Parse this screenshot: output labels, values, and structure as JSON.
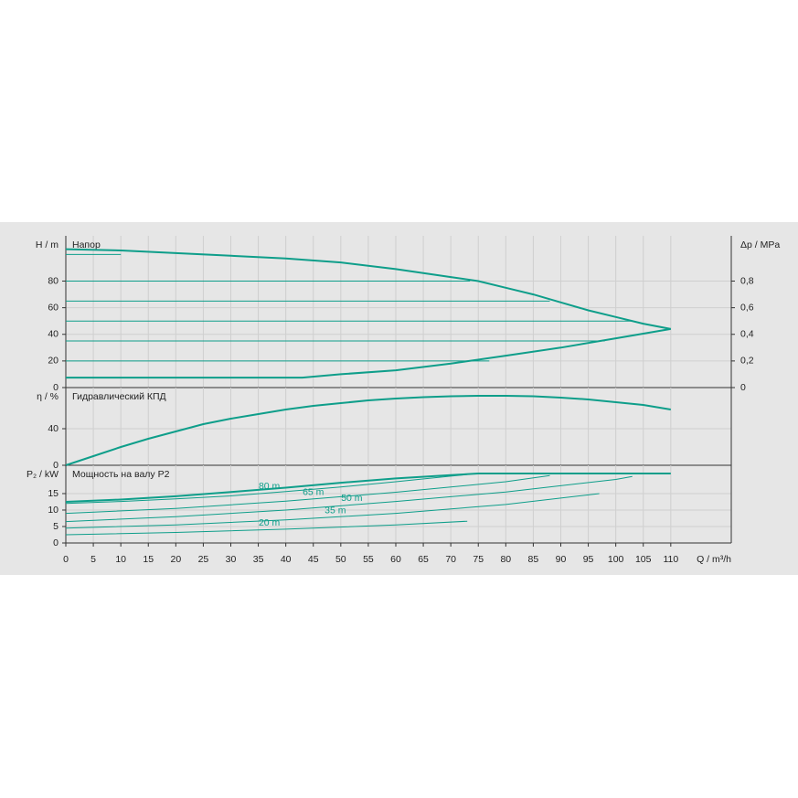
{
  "chart_data": [
    {
      "type": "line",
      "ylabel": "H / m",
      "title": "Напор",
      "y2label": "Δp / MPa",
      "xlim": [
        0,
        121
      ],
      "ylim": [
        0,
        114
      ],
      "yticks": [
        0,
        20,
        40,
        60,
        80
      ],
      "y2lim": [
        0,
        1.14
      ],
      "y2ticks": [
        0,
        {
          "value": 0.2,
          "label": "0,2"
        },
        {
          "value": 0.4,
          "label": "0,4"
        },
        {
          "value": 0.6,
          "label": "0,6"
        },
        {
          "value": 0.8,
          "label": "0,8"
        }
      ],
      "series": [
        {
          "color": "#0e9e8a",
          "x": [
            0,
            10,
            20,
            30,
            40,
            50,
            60,
            70,
            75,
            80,
            85,
            90,
            95,
            100,
            105,
            110
          ],
          "values": [
            104,
            103,
            101,
            99,
            97,
            94,
            89,
            83,
            80,
            75,
            70,
            64,
            58,
            53,
            48,
            44
          ]
        },
        {
          "color": "#0e9e8a",
          "x": [
            0,
            43,
            50,
            60,
            70,
            80,
            90,
            100,
            110
          ],
          "values": [
            7.5,
            7.5,
            10,
            13,
            18,
            24,
            30,
            37,
            44
          ]
        },
        {
          "color": "#0e9e8a",
          "x": [
            0,
            10
          ],
          "values": [
            100,
            100
          ]
        },
        {
          "color": "#0e9e8a",
          "x": [
            0,
            73.5
          ],
          "values": [
            80,
            80
          ]
        },
        {
          "color": "#0e9e8a",
          "x": [
            0,
            88
          ],
          "values": [
            65,
            65
          ]
        },
        {
          "color": "#0e9e8a",
          "x": [
            0,
            103
          ],
          "values": [
            50,
            50
          ]
        },
        {
          "color": "#0e9e8a",
          "x": [
            0,
            98
          ],
          "values": [
            35,
            35
          ]
        },
        {
          "color": "#0e9e8a",
          "x": [
            0,
            77
          ],
          "values": [
            20,
            20
          ]
        }
      ]
    },
    {
      "type": "line",
      "ylabel": "η / %",
      "title": "Гидравлический КПД",
      "xlim": [
        0,
        121
      ],
      "ylim": [
        0,
        85
      ],
      "yticks": [
        0,
        40
      ],
      "series": [
        {
          "color": "#0e9e8a",
          "x": [
            0,
            5,
            10,
            15,
            20,
            25,
            30,
            35,
            40,
            45,
            50,
            55,
            60,
            65,
            70,
            75,
            80,
            85,
            90,
            95,
            100,
            105,
            110
          ],
          "values": [
            0,
            10,
            20,
            29,
            37,
            45,
            51,
            56,
            61,
            65,
            68,
            71,
            73,
            74.5,
            75.5,
            76,
            76,
            75.5,
            74,
            72,
            69,
            66,
            61
          ]
        }
      ]
    },
    {
      "type": "line",
      "ylabel": "P₂ / kW",
      "title": "Мощность на валу P2",
      "xlabel": "Q / m³/h",
      "xlim": [
        0,
        121
      ],
      "ylim": [
        0,
        23.6
      ],
      "yticks": [
        0,
        5,
        10,
        15
      ],
      "xticks": [
        0,
        5,
        10,
        15,
        20,
        25,
        30,
        35,
        40,
        45,
        50,
        55,
        60,
        65,
        70,
        75,
        80,
        85,
        90,
        95,
        100,
        105,
        110
      ],
      "series": [
        {
          "color": "#0e9e8a",
          "x": [
            0,
            10,
            20,
            30,
            40,
            50,
            60,
            70,
            75,
            90,
            110
          ],
          "values": [
            12.5,
            13.2,
            14.2,
            15.5,
            16.8,
            18.3,
            19.6,
            20.6,
            21.1,
            21.1,
            21.1
          ]
        },
        {
          "name": "80 m",
          "color": "#0e9e8a",
          "x": [
            0,
            10,
            20,
            30,
            40,
            50,
            60,
            70,
            73
          ],
          "values": [
            12,
            12.6,
            13.4,
            14.3,
            15.6,
            17,
            18.6,
            20.3,
            20.8
          ]
        },
        {
          "name": "65 m",
          "color": "#0e9e8a",
          "x": [
            0,
            20,
            40,
            60,
            80,
            88
          ],
          "values": [
            9,
            10.5,
            12.7,
            15.4,
            18.6,
            20.5
          ]
        },
        {
          "name": "50 m",
          "color": "#0e9e8a",
          "x": [
            0,
            20,
            40,
            60,
            80,
            100,
            103
          ],
          "values": [
            6.5,
            8,
            10,
            12.6,
            15.5,
            19.3,
            20.2
          ]
        },
        {
          "name": "35 m",
          "color": "#0e9e8a",
          "x": [
            0,
            20,
            40,
            60,
            80,
            97
          ],
          "values": [
            4.5,
            5.5,
            7,
            9,
            11.7,
            15
          ]
        },
        {
          "name": "20 m",
          "color": "#0e9e8a",
          "x": [
            0,
            20,
            40,
            60,
            73
          ],
          "values": [
            2.5,
            3.2,
            4.2,
            5.5,
            6.6
          ]
        }
      ]
    }
  ]
}
